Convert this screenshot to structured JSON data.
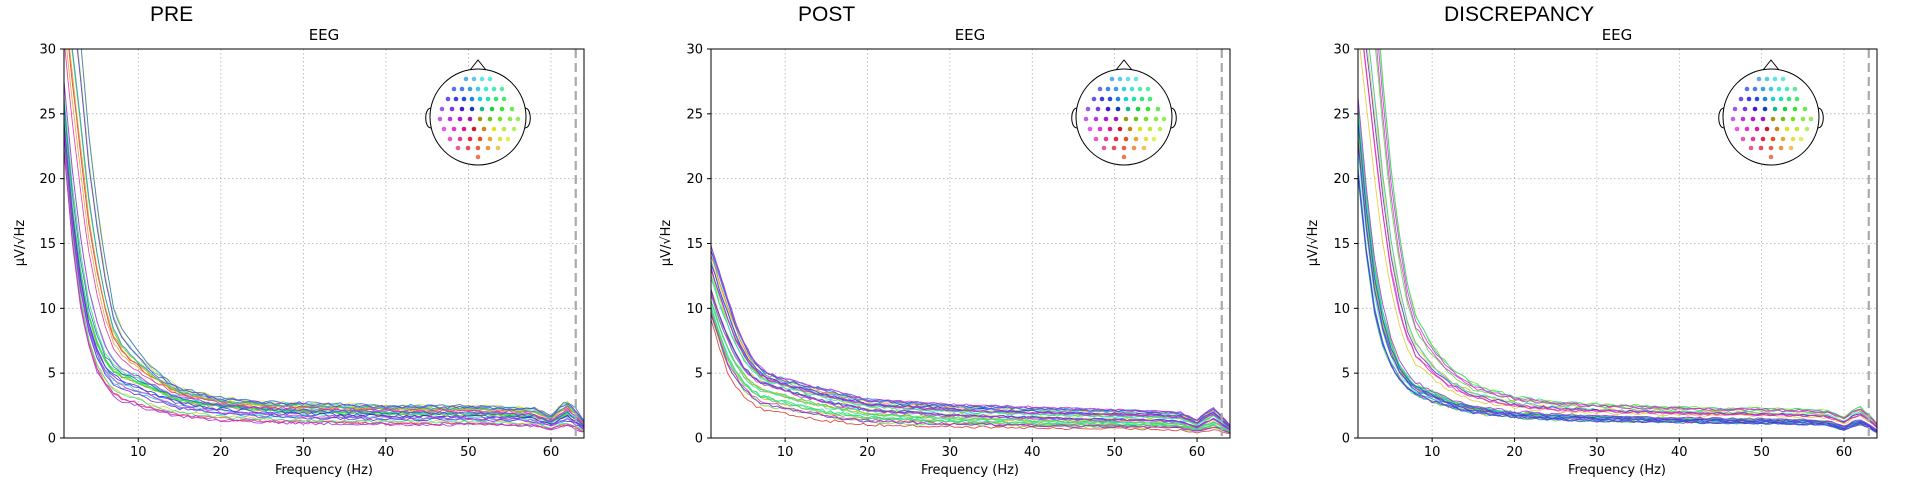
{
  "chart_data": [
    {
      "panel_title": "PRE",
      "type": "line",
      "title": "EEG",
      "xlabel": "Frequency (Hz)",
      "ylabel": "µV/√Hz",
      "xlim": [
        1,
        64
      ],
      "ylim": [
        0,
        30
      ],
      "xticks": [
        10,
        20,
        30,
        40,
        50,
        60
      ],
      "yticks": [
        0,
        5,
        10,
        15,
        20,
        25,
        30
      ],
      "grid": true,
      "dashed_vline_x": 63,
      "sensor_inset": "top-right",
      "n_channels": 32,
      "profile": {
        "freqs": [
          1,
          2,
          3,
          4,
          5,
          6,
          7,
          8,
          10,
          12,
          15,
          20,
          25,
          30,
          35,
          40,
          45,
          50,
          55,
          58,
          60,
          61,
          62,
          63,
          64
        ],
        "median": [
          25,
          18,
          13,
          9.5,
          7.5,
          6,
          5.3,
          4.9,
          4.4,
          3.8,
          3.0,
          2.5,
          2.2,
          2.1,
          2.0,
          1.95,
          1.9,
          1.9,
          1.8,
          1.7,
          1.2,
          1.6,
          1.9,
          1.5,
          0.9
        ],
        "low": [
          22,
          15,
          10,
          7,
          5,
          4,
          3.2,
          2.8,
          2.4,
          2.0,
          1.6,
          1.3,
          1.2,
          1.1,
          1.05,
          1.0,
          1.0,
          1.0,
          0.95,
          0.9,
          0.6,
          0.8,
          0.9,
          0.7,
          0.4
        ],
        "high": [
          45,
          40,
          34,
          26,
          20,
          15,
          11,
          9,
          7,
          5.5,
          4.0,
          3.2,
          2.9,
          2.8,
          2.7,
          2.6,
          2.6,
          2.6,
          2.5,
          2.4,
          1.8,
          2.6,
          3.0,
          2.4,
          1.4
        ]
      }
    },
    {
      "panel_title": "POST",
      "type": "line",
      "title": "EEG",
      "xlabel": "Frequency (Hz)",
      "ylabel": "µV/√Hz",
      "xlim": [
        1,
        64
      ],
      "ylim": [
        0,
        30
      ],
      "xticks": [
        10,
        20,
        30,
        40,
        50,
        60
      ],
      "yticks": [
        0,
        5,
        10,
        15,
        20,
        25,
        30
      ],
      "grid": true,
      "dashed_vline_x": 63,
      "sensor_inset": "top-right",
      "n_channels": 32,
      "profile": {
        "freqs": [
          1,
          2,
          3,
          4,
          5,
          6,
          7,
          8,
          10,
          12,
          15,
          20,
          25,
          30,
          35,
          40,
          45,
          50,
          55,
          58,
          60,
          61,
          62,
          63,
          64
        ],
        "median": [
          11,
          9,
          7.5,
          6.2,
          5.2,
          4.6,
          4.2,
          4.0,
          3.6,
          3.2,
          2.7,
          2.1,
          1.9,
          1.7,
          1.6,
          1.5,
          1.4,
          1.35,
          1.3,
          1.2,
          0.8,
          1.1,
          1.4,
          1.0,
          0.6
        ],
        "low": [
          9,
          7,
          5,
          4,
          3.2,
          2.6,
          2.2,
          2.0,
          1.8,
          1.6,
          1.3,
          1.0,
          0.9,
          0.85,
          0.8,
          0.75,
          0.7,
          0.7,
          0.65,
          0.6,
          0.4,
          0.5,
          0.6,
          0.5,
          0.3
        ],
        "high": [
          15,
          13,
          11,
          9,
          7.5,
          6.3,
          5.5,
          5.0,
          4.6,
          4.2,
          3.8,
          3.0,
          2.8,
          2.6,
          2.5,
          2.4,
          2.3,
          2.2,
          2.1,
          2.0,
          1.4,
          2.0,
          2.3,
          1.7,
          1.0
        ]
      }
    },
    {
      "panel_title": "DISCREPANCY",
      "type": "line",
      "title": "EEG",
      "xlabel": "Frequency (Hz)",
      "ylabel": "µV/√Hz",
      "xlim": [
        1,
        64
      ],
      "ylim": [
        0,
        30
      ],
      "xticks": [
        10,
        20,
        30,
        40,
        50,
        60
      ],
      "yticks": [
        0,
        5,
        10,
        15,
        20,
        25,
        30
      ],
      "grid": true,
      "dashed_vline_x": 63,
      "sensor_inset": "top-right",
      "n_channels": 32,
      "profile": {
        "freqs": [
          1,
          2,
          3,
          4,
          5,
          6,
          7,
          8,
          10,
          12,
          15,
          20,
          25,
          30,
          35,
          40,
          45,
          50,
          55,
          58,
          60,
          61,
          62,
          63,
          64
        ],
        "median": [
          26,
          19,
          13.5,
          10,
          7.5,
          5.8,
          4.8,
          4.2,
          3.6,
          3.0,
          2.4,
          2.0,
          1.8,
          1.7,
          1.6,
          1.55,
          1.5,
          1.45,
          1.4,
          1.3,
          0.9,
          1.2,
          1.4,
          1.1,
          0.6
        ],
        "low": [
          20,
          14,
          9.5,
          7,
          5.5,
          4.5,
          3.8,
          3.3,
          2.8,
          2.4,
          1.9,
          1.6,
          1.4,
          1.3,
          1.25,
          1.2,
          1.15,
          1.1,
          1.05,
          1.0,
          0.6,
          0.9,
          1.0,
          0.8,
          0.4
        ],
        "high": [
          45,
          42,
          36,
          28,
          21,
          16,
          12,
          9.5,
          7.2,
          5.6,
          4.2,
          3.2,
          2.8,
          2.6,
          2.5,
          2.4,
          2.3,
          2.3,
          2.2,
          2.1,
          1.6,
          2.1,
          2.4,
          1.8,
          1.1
        ]
      }
    }
  ]
}
